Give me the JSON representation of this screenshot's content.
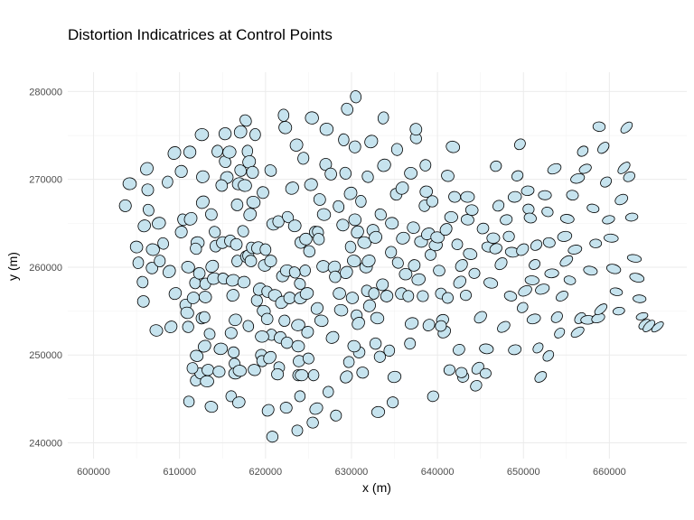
{
  "chart_data": {
    "type": "scatter",
    "title": "Distortion Indicatrices at Control Points",
    "xlabel": "x (m)",
    "ylabel": "y (m)",
    "xlim": [
      597000,
      669000
    ],
    "ylim": [
      238200,
      282200
    ],
    "x_ticks": [
      600000,
      610000,
      620000,
      630000,
      640000,
      650000,
      660000
    ],
    "y_ticks": [
      240000,
      250000,
      260000,
      270000,
      280000
    ],
    "x_tick_labels": [
      "600000",
      "610000",
      "620000",
      "630000",
      "640000",
      "650000",
      "660000"
    ],
    "y_tick_labels": [
      "240000",
      "250000",
      "260000",
      "270000",
      "280000"
    ],
    "grid": true,
    "legend": "none",
    "colors": {
      "fill": "#c6e3ee",
      "stroke": "#000000",
      "grid": "#ebebeb",
      "tick_text": "#4d4d4d"
    },
    "points": [
      [
        603700,
        267000
      ],
      [
        604200,
        269500
      ],
      [
        605000,
        262300
      ],
      [
        605200,
        260500
      ],
      [
        605700,
        258300
      ],
      [
        605900,
        264700
      ],
      [
        606200,
        271200
      ],
      [
        606300,
        268800
      ],
      [
        606400,
        266500
      ],
      [
        606800,
        259900
      ],
      [
        606900,
        262000
      ],
      [
        607300,
        252800
      ],
      [
        607700,
        260700
      ],
      [
        608100,
        262700
      ],
      [
        609000,
        253200
      ],
      [
        609400,
        273000
      ],
      [
        610200,
        264000
      ],
      [
        610400,
        265400
      ],
      [
        610700,
        255700
      ],
      [
        610900,
        254800
      ],
      [
        611000,
        260000
      ],
      [
        611000,
        253200
      ],
      [
        611100,
        244700
      ],
      [
        611200,
        273100
      ],
      [
        611300,
        265500
      ],
      [
        611600,
        256500
      ],
      [
        611800,
        258200
      ],
      [
        611900,
        247100
      ],
      [
        612000,
        249900
      ],
      [
        612100,
        262800
      ],
      [
        612300,
        259300
      ],
      [
        612400,
        247900
      ],
      [
        612600,
        254200
      ],
      [
        612700,
        267400
      ],
      [
        612700,
        270300
      ],
      [
        612900,
        254300
      ],
      [
        613000,
        258100
      ],
      [
        613000,
        256600
      ],
      [
        613200,
        247000
      ],
      [
        613300,
        248300
      ],
      [
        613500,
        252400
      ],
      [
        613700,
        266000
      ],
      [
        613800,
        260100
      ],
      [
        614000,
        258700
      ],
      [
        614200,
        262400
      ],
      [
        614400,
        273200
      ],
      [
        614600,
        248100
      ],
      [
        614800,
        250700
      ],
      [
        615000,
        262800
      ],
      [
        615100,
        258700
      ],
      [
        615300,
        272000
      ],
      [
        615500,
        270200
      ],
      [
        615800,
        273100
      ],
      [
        615900,
        263000
      ],
      [
        616000,
        245300
      ],
      [
        616000,
        252500
      ],
      [
        616200,
        258500
      ],
      [
        616200,
        256800
      ],
      [
        616300,
        250300
      ],
      [
        616400,
        249000
      ],
      [
        616500,
        254000
      ],
      [
        616500,
        247900
      ],
      [
        616600,
        262600
      ],
      [
        616700,
        260700
      ],
      [
        616700,
        267100
      ],
      [
        616900,
        269500
      ],
      [
        617100,
        275400
      ],
      [
        617100,
        271000
      ],
      [
        617400,
        264100
      ],
      [
        617500,
        258300
      ],
      [
        617600,
        269300
      ],
      [
        617800,
        261200
      ],
      [
        617900,
        273200
      ],
      [
        618000,
        261300
      ],
      [
        618100,
        272000
      ],
      [
        618200,
        266000
      ],
      [
        618300,
        260700
      ],
      [
        618400,
        262200
      ],
      [
        618500,
        270800
      ],
      [
        618600,
        267400
      ],
      [
        618700,
        248300
      ],
      [
        618800,
        275100
      ],
      [
        619000,
        256200
      ],
      [
        619100,
        262200
      ],
      [
        619300,
        257500
      ],
      [
        619500,
        250000
      ],
      [
        619600,
        249300
      ],
      [
        619700,
        268500
      ],
      [
        619800,
        255000
      ],
      [
        619900,
        260200
      ],
      [
        620000,
        262000
      ],
      [
        620200,
        257200
      ],
      [
        620300,
        243700
      ],
      [
        620500,
        249700
      ],
      [
        620600,
        260700
      ],
      [
        620700,
        252300
      ],
      [
        620800,
        240700
      ],
      [
        620900,
        264900
      ],
      [
        621100,
        256800
      ],
      [
        621500,
        265200
      ],
      [
        621600,
        248600
      ],
      [
        621700,
        252000
      ],
      [
        621900,
        256000
      ],
      [
        622000,
        259000
      ],
      [
        622100,
        277300
      ],
      [
        622200,
        253900
      ],
      [
        622300,
        275900
      ],
      [
        622500,
        259600
      ],
      [
        622500,
        251400
      ],
      [
        622600,
        265700
      ],
      [
        622800,
        256500
      ],
      [
        623100,
        269000
      ],
      [
        623400,
        264700
      ],
      [
        623700,
        241400
      ],
      [
        623800,
        247700
      ],
      [
        623800,
        251000
      ],
      [
        623800,
        253400
      ],
      [
        623900,
        249300
      ],
      [
        624000,
        258100
      ],
      [
        624100,
        262800
      ],
      [
        624100,
        256500
      ],
      [
        624200,
        247700
      ],
      [
        624400,
        272400
      ],
      [
        624600,
        259600
      ],
      [
        624700,
        263200
      ],
      [
        624800,
        257000
      ],
      [
        624900,
        252600
      ],
      [
        625000,
        249600
      ],
      [
        625100,
        261800
      ],
      [
        625300,
        269400
      ],
      [
        625400,
        277000
      ],
      [
        625500,
        242300
      ],
      [
        625600,
        247700
      ],
      [
        625800,
        264000
      ],
      [
        625900,
        243900
      ],
      [
        626000,
        255300
      ],
      [
        626100,
        264000
      ],
      [
        626200,
        263200
      ],
      [
        626700,
        260100
      ],
      [
        626800,
        266000
      ],
      [
        627000,
        271700
      ],
      [
        627300,
        245800
      ],
      [
        627600,
        270600
      ],
      [
        627800,
        252000
      ],
      [
        628000,
        260000
      ],
      [
        628200,
        243100
      ],
      [
        628500,
        266900
      ],
      [
        628600,
        257000
      ],
      [
        628800,
        255100
      ],
      [
        629000,
        264800
      ],
      [
        629100,
        274500
      ],
      [
        629300,
        270700
      ],
      [
        629400,
        259400
      ],
      [
        629400,
        247500
      ],
      [
        629500,
        278000
      ],
      [
        629900,
        262300
      ],
      [
        630100,
        256500
      ],
      [
        630300,
        260700
      ],
      [
        630400,
        265400
      ],
      [
        630500,
        279400
      ],
      [
        630600,
        254500
      ],
      [
        630700,
        264000
      ],
      [
        630800,
        253600
      ],
      [
        630900,
        250300
      ],
      [
        631100,
        267500
      ],
      [
        631300,
        248000
      ],
      [
        631500,
        262800
      ],
      [
        631700,
        260000
      ],
      [
        631800,
        257300
      ],
      [
        631900,
        270300
      ],
      [
        632100,
        255600
      ],
      [
        632300,
        274300
      ],
      [
        632500,
        264200
      ],
      [
        632600,
        257000
      ],
      [
        632800,
        251300
      ],
      [
        633000,
        254200
      ],
      [
        633100,
        243500
      ],
      [
        633300,
        249800
      ],
      [
        633400,
        266000
      ],
      [
        633600,
        258000
      ],
      [
        633800,
        271600
      ],
      [
        634100,
        256700
      ],
      [
        634400,
        250500
      ],
      [
        634600,
        261700
      ],
      [
        634700,
        265000
      ],
      [
        635000,
        247500
      ],
      [
        635200,
        268300
      ],
      [
        635400,
        260500
      ],
      [
        635800,
        257000
      ],
      [
        636000,
        263300
      ],
      [
        636300,
        259200
      ],
      [
        636600,
        256700
      ],
      [
        636800,
        251300
      ],
      [
        636900,
        270700
      ],
      [
        637000,
        253600
      ],
      [
        637300,
        260200
      ],
      [
        637500,
        274700
      ],
      [
        637500,
        275700
      ],
      [
        637800,
        258600
      ],
      [
        638100,
        262900
      ],
      [
        638300,
        256700
      ],
      [
        638500,
        267000
      ],
      [
        638700,
        268600
      ],
      [
        638900,
        263800
      ],
      [
        639000,
        253400
      ],
      [
        639200,
        261400
      ],
      [
        639500,
        245300
      ],
      [
        639800,
        262500
      ],
      [
        640000,
        263400
      ],
      [
        640200,
        259600
      ],
      [
        640400,
        257000
      ],
      [
        640600,
        254000
      ],
      [
        640800,
        252600
      ],
      [
        641000,
        264300
      ],
      [
        641200,
        256500
      ],
      [
        641400,
        248300
      ],
      [
        641600,
        265700
      ],
      [
        641800,
        273700
      ],
      [
        642000,
        268000
      ],
      [
        642300,
        262600
      ],
      [
        642500,
        250600
      ],
      [
        642600,
        258300
      ],
      [
        642800,
        260200
      ],
      [
        643000,
        247500
      ],
      [
        643300,
        256800
      ],
      [
        643500,
        265400
      ],
      [
        643800,
        261500
      ],
      [
        644000,
        266500
      ],
      [
        644300,
        259300
      ],
      [
        644500,
        246500
      ],
      [
        644700,
        248500
      ],
      [
        645000,
        254300
      ],
      [
        645300,
        264400
      ],
      [
        645600,
        247900
      ],
      [
        645900,
        262300
      ],
      [
        646200,
        258200
      ],
      [
        646500,
        263300
      ],
      [
        646800,
        271500
      ],
      [
        647100,
        267000
      ],
      [
        647400,
        260400
      ],
      [
        647700,
        253200
      ],
      [
        648000,
        265400
      ],
      [
        648300,
        263500
      ],
      [
        648500,
        256700
      ],
      [
        648700,
        261700
      ],
      [
        649000,
        268000
      ],
      [
        649300,
        270400
      ],
      [
        649600,
        274000
      ],
      [
        649900,
        262000
      ],
      [
        650200,
        257300
      ],
      [
        650500,
        268700
      ],
      [
        650600,
        266600
      ],
      [
        650800,
        265600
      ],
      [
        651000,
        258500
      ],
      [
        651200,
        254100
      ],
      [
        651500,
        262500
      ],
      [
        651700,
        250800
      ],
      [
        652000,
        247500
      ],
      [
        652200,
        257500
      ],
      [
        652500,
        268200
      ],
      [
        652800,
        266300
      ],
      [
        653000,
        262800
      ],
      [
        653300,
        259300
      ],
      [
        653600,
        271200
      ],
      [
        653900,
        254300
      ],
      [
        654200,
        252500
      ],
      [
        654500,
        256700
      ],
      [
        654800,
        263500
      ],
      [
        655100,
        265500
      ],
      [
        655400,
        258500
      ],
      [
        655700,
        268200
      ],
      [
        656000,
        262000
      ],
      [
        656300,
        252600
      ],
      [
        656600,
        254200
      ],
      [
        656900,
        273200
      ],
      [
        657200,
        271200
      ],
      [
        657500,
        254000
      ],
      [
        657800,
        259600
      ],
      [
        658100,
        266700
      ],
      [
        658400,
        262700
      ],
      [
        658700,
        254200
      ],
      [
        659000,
        255200
      ],
      [
        659300,
        273600
      ],
      [
        659600,
        269700
      ],
      [
        659900,
        265400
      ],
      [
        660200,
        263300
      ],
      [
        660500,
        259800
      ],
      [
        660800,
        257200
      ],
      [
        661100,
        255000
      ],
      [
        661400,
        267700
      ],
      [
        661700,
        271300
      ],
      [
        662000,
        275900
      ],
      [
        662300,
        270300
      ],
      [
        662600,
        265700
      ],
      [
        662900,
        261000
      ],
      [
        663200,
        258800
      ],
      [
        663500,
        256400
      ],
      [
        663800,
        254400
      ],
      [
        664100,
        253500
      ],
      [
        664600,
        253300
      ],
      [
        665600,
        253200
      ],
      [
        640400,
        253300
      ],
      [
        642800,
        248000
      ],
      [
        630300,
        251000
      ],
      [
        626500,
        253900
      ],
      [
        621400,
        247800
      ],
      [
        618000,
        253300
      ],
      [
        614900,
        269300
      ],
      [
        608800,
        259500
      ],
      [
        612900,
        251000
      ],
      [
        634800,
        244600
      ],
      [
        629700,
        249200
      ],
      [
        637200,
        264500
      ],
      [
        645700,
        250700
      ],
      [
        649000,
        250600
      ],
      [
        651300,
        260300
      ],
      [
        639400,
        267500
      ],
      [
        635900,
        269000
      ],
      [
        632000,
        260700
      ],
      [
        628100,
        258900
      ],
      [
        624000,
        245300
      ],
      [
        622400,
        244000
      ],
      [
        619600,
        252100
      ],
      [
        616900,
        244600
      ],
      [
        614100,
        264000
      ],
      [
        611900,
        262100
      ],
      [
        609500,
        257000
      ],
      [
        607600,
        265000
      ],
      [
        605800,
        256100
      ],
      [
        633700,
        277000
      ],
      [
        630400,
        273700
      ],
      [
        627100,
        275700
      ],
      [
        623600,
        273900
      ],
      [
        620600,
        271000
      ],
      [
        617700,
        276700
      ],
      [
        615300,
        275200
      ],
      [
        612600,
        275100
      ],
      [
        610200,
        270900
      ],
      [
        608600,
        269700
      ],
      [
        658800,
        276000
      ],
      [
        656300,
        270100
      ],
      [
        655000,
        260700
      ],
      [
        652900,
        249900
      ],
      [
        649900,
        255400
      ],
      [
        646800,
        262100
      ],
      [
        643500,
        268000
      ],
      [
        641200,
        270400
      ],
      [
        638600,
        271600
      ],
      [
        635300,
        273400
      ],
      [
        632800,
        263400
      ],
      [
        629900,
        268400
      ],
      [
        626300,
        267700
      ],
      [
        623400,
        259400
      ],
      [
        620200,
        254100
      ],
      [
        617000,
        248200
      ],
      [
        613700,
        244100
      ],
      [
        611500,
        248500
      ]
    ]
  }
}
